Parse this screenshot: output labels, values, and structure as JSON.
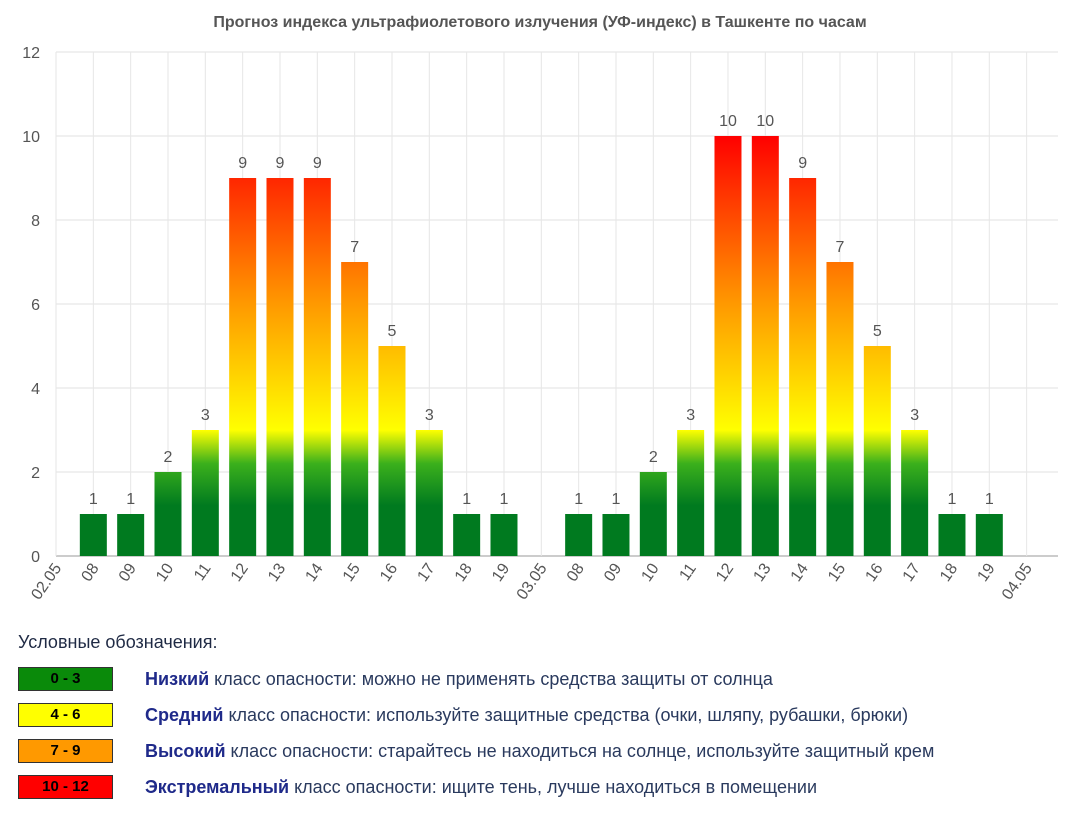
{
  "chart_data": {
    "type": "bar",
    "title": "Прогноз индекса ультрафиолетового излучения (УФ-индекс) в Ташкенте по часам",
    "xlabel": "",
    "ylabel": "",
    "ylim": [
      0,
      12
    ],
    "yticks": [
      "0",
      "2",
      "4",
      "6",
      "8",
      "10",
      "12"
    ],
    "grid": true,
    "categories": [
      "02.05",
      "08",
      "09",
      "10",
      "11",
      "12",
      "13",
      "14",
      "15",
      "16",
      "17",
      "18",
      "19",
      "03.05",
      "08",
      "09",
      "10",
      "11",
      "12",
      "13",
      "14",
      "15",
      "16",
      "17",
      "18",
      "19",
      "04.05"
    ],
    "values": [
      null,
      1,
      1,
      2,
      3,
      9,
      9,
      9,
      7,
      5,
      3,
      1,
      1,
      null,
      1,
      1,
      2,
      3,
      10,
      10,
      9,
      7,
      5,
      3,
      1,
      1,
      null
    ],
    "gradient_colors": {
      "green": "#007a1f",
      "lime": "#3bb01c",
      "yellow": "#ffff00",
      "orange": "#ff9900",
      "red": "#ff0000"
    }
  },
  "legend": {
    "heading": "Условные обозначения:",
    "items": [
      {
        "range": "0 - 3",
        "color": "#0a8a0a",
        "text_color": "#000000",
        "level": "Низкий",
        "description": " класс опасности: можно не применять средства защиты от солнца"
      },
      {
        "range": "4 - 6",
        "color": "#ffff00",
        "text_color": "#000000",
        "level": "Средний",
        "description": " класс опасности: используйте защитные средства (очки, шляпу, рубашки, брюки)"
      },
      {
        "range": "7 - 9",
        "color": "#ff9900",
        "text_color": "#000000",
        "level": "Высокий",
        "description": " класс опасности: старайтесь не находиться на солнце, используйте защитный крем"
      },
      {
        "range": "10 - 12",
        "color": "#ff0000",
        "text_color": "#000000",
        "level": "Экстремальный",
        "description": " класс опасности: ищите тень, лучше находиться в помещении"
      }
    ]
  }
}
